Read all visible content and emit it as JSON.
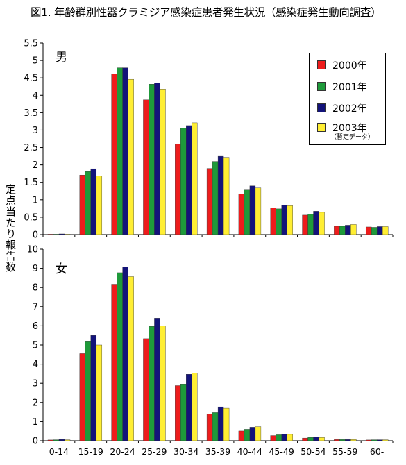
{
  "title": "図1. 年齢群別性器クラミジア感染症患者発生状況（感染症発生動向調査）",
  "chart_data": {
    "type": "bar",
    "ylabel": "定点当たり報告数",
    "categories": [
      "0-14",
      "15-19",
      "20-24",
      "25-29",
      "30-34",
      "35-39",
      "40-44",
      "45-49",
      "50-54",
      "55-59",
      "60-"
    ],
    "legend": {
      "series_names": [
        "2000年",
        "2001年",
        "2002年",
        "2003年"
      ],
      "note": "（暫定データ）",
      "placement": "top-right"
    },
    "colors": [
      "#ee1c1c",
      "#1e9a3a",
      "#13137a",
      "#ffee33"
    ],
    "grid": false,
    "panels": [
      {
        "label": "男",
        "ylim": [
          0,
          5.5
        ],
        "yticks": [
          "0",
          "0.5",
          "1",
          "1.5",
          "2",
          "2.5",
          "3",
          "3.5",
          "4",
          "4.5",
          "5",
          "5.5"
        ],
        "series": [
          {
            "name": "2000年",
            "values": [
              0.01,
              1.71,
              4.61,
              3.87,
              2.6,
              1.9,
              1.17,
              0.77,
              0.56,
              0.24,
              0.22
            ]
          },
          {
            "name": "2001年",
            "values": [
              0.01,
              1.81,
              4.79,
              4.32,
              3.06,
              2.1,
              1.28,
              0.74,
              0.59,
              0.24,
              0.21
            ]
          },
          {
            "name": "2002年",
            "values": [
              0.02,
              1.89,
              4.79,
              4.36,
              3.13,
              2.25,
              1.4,
              0.85,
              0.67,
              0.27,
              0.23
            ]
          },
          {
            "name": "2003年",
            "values": [
              0.01,
              1.68,
              4.46,
              4.18,
              3.21,
              2.22,
              1.34,
              0.83,
              0.64,
              0.29,
              0.23
            ]
          }
        ]
      },
      {
        "label": "女",
        "ylim": [
          0,
          10
        ],
        "yticks": [
          "0",
          "1",
          "2",
          "3",
          "4",
          "5",
          "6",
          "7",
          "8",
          "9",
          "10"
        ],
        "series": [
          {
            "name": "2000年",
            "values": [
              0.04,
              4.55,
              8.17,
              5.33,
              2.88,
              1.4,
              0.51,
              0.27,
              0.14,
              0.06,
              0.04
            ]
          },
          {
            "name": "2001年",
            "values": [
              0.05,
              5.17,
              8.77,
              5.97,
              2.93,
              1.47,
              0.6,
              0.31,
              0.17,
              0.06,
              0.05
            ]
          },
          {
            "name": "2002年",
            "values": [
              0.07,
              5.5,
              9.07,
              6.4,
              3.47,
              1.77,
              0.71,
              0.35,
              0.2,
              0.06,
              0.05
            ]
          },
          {
            "name": "2003年",
            "values": [
              0.05,
              5.0,
              8.57,
              6.0,
              3.53,
              1.7,
              0.74,
              0.33,
              0.17,
              0.06,
              0.05
            ]
          }
        ]
      }
    ]
  }
}
